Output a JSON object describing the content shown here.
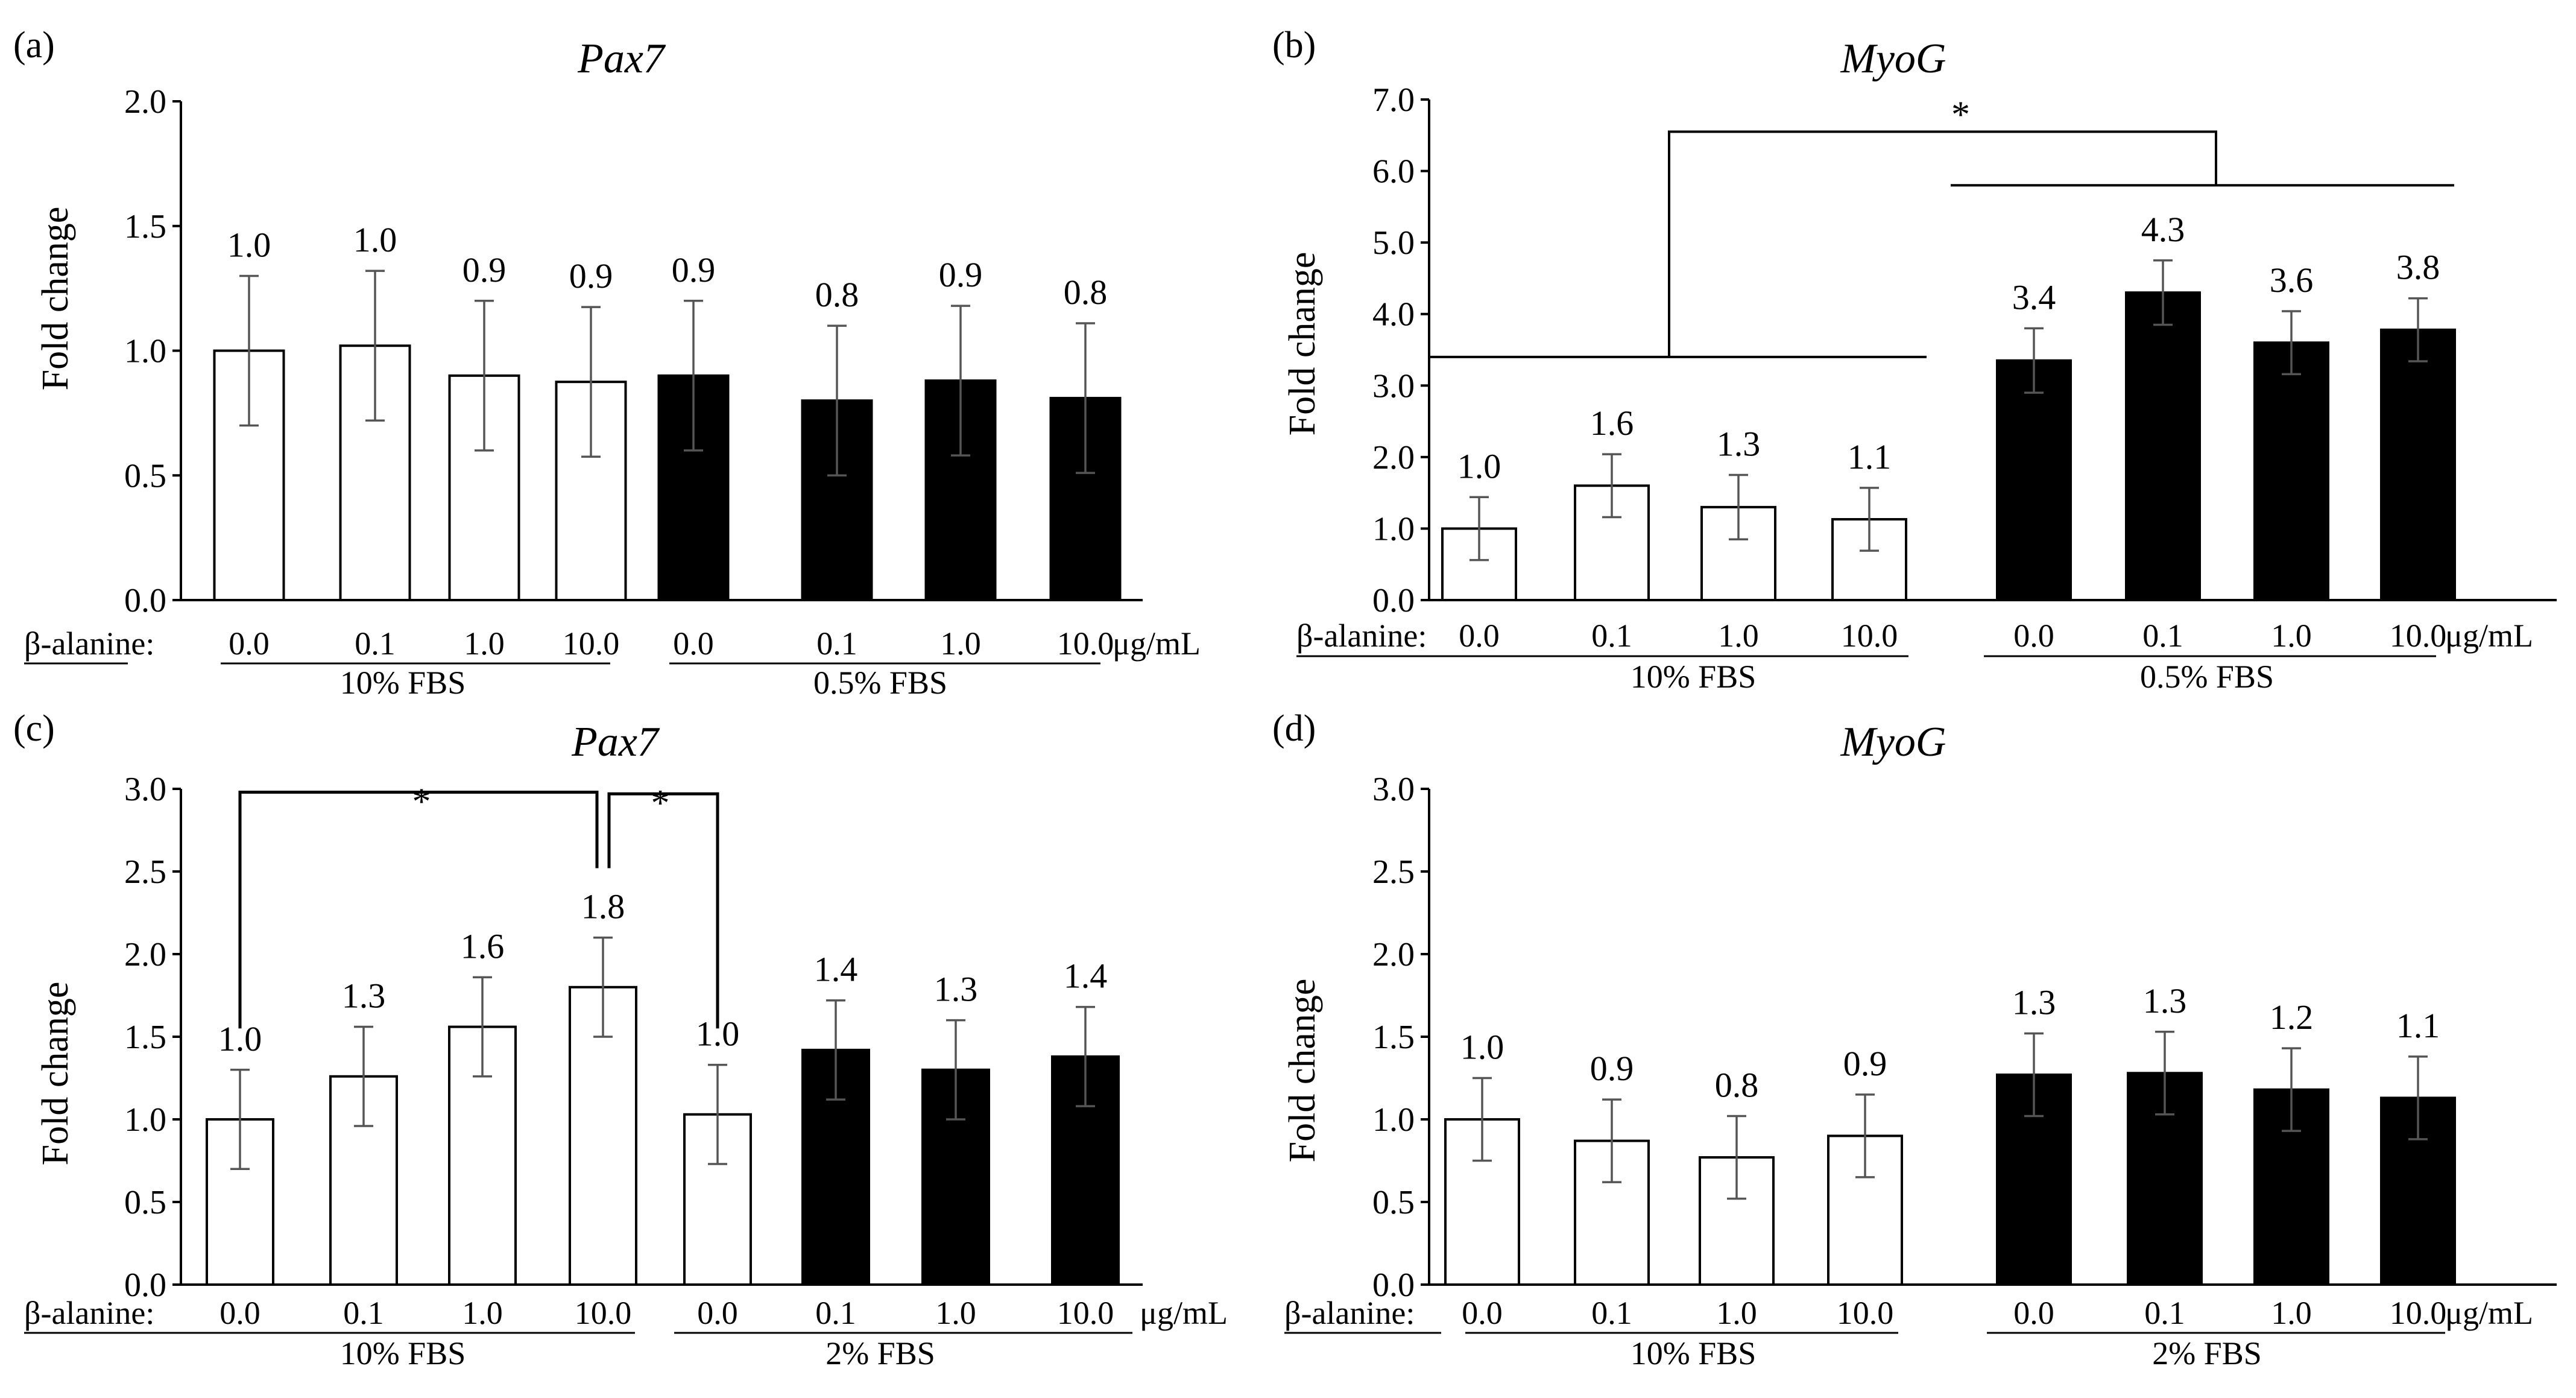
{
  "colors": {
    "open_bar_fill": "#ffffff",
    "filled_bar_fill": "#000000",
    "stroke": "#000000",
    "error_bar": "#555555"
  },
  "chart_data": [
    {
      "panel": "(a)",
      "title": "Pax7",
      "type": "bar",
      "ylabel": "Fold change",
      "ylim": [
        0,
        2.0
      ],
      "yticks": [
        "0.0",
        "0.5",
        "1.0",
        "1.5",
        "2.0"
      ],
      "categories": [
        "0.0",
        "0.1",
        "1.0",
        "10.0",
        "0.0",
        "0.1",
        "1.0",
        "10.0"
      ],
      "values": [
        1.0,
        1.02,
        0.9,
        0.875,
        0.9,
        0.8,
        0.88,
        0.81
      ],
      "errors": [
        0.3,
        0.3,
        0.3,
        0.3,
        0.3,
        0.3,
        0.3,
        0.3
      ],
      "value_labels": [
        "1.0",
        "1.0",
        "0.9",
        "0.9",
        "0.9",
        "0.8",
        "0.9",
        "0.8"
      ],
      "fills": [
        "open",
        "open",
        "open",
        "open",
        "filled",
        "filled",
        "filled",
        "filled"
      ],
      "x_prefix": "β-alanine:",
      "x_unit": "μg/mL",
      "groups": [
        {
          "label": "10% FBS",
          "bars": [
            0,
            3
          ]
        },
        {
          "label": "0.5% FBS",
          "bars": [
            4,
            7
          ]
        }
      ],
      "significance": []
    },
    {
      "panel": "(b)",
      "title": "MyoG",
      "type": "bar",
      "ylabel": "Fold change",
      "ylim": [
        0,
        7.0
      ],
      "yticks": [
        "0.0",
        "1.0",
        "2.0",
        "3.0",
        "4.0",
        "5.0",
        "6.0",
        "7.0"
      ],
      "categories": [
        "0.0",
        "0.1",
        "1.0",
        "10.0",
        "0.0",
        "0.1",
        "1.0",
        "10.0"
      ],
      "values": [
        1.0,
        1.6,
        1.3,
        1.13,
        3.35,
        4.3,
        3.6,
        3.78
      ],
      "errors": [
        0.44,
        0.44,
        0.45,
        0.44,
        0.45,
        0.45,
        0.44,
        0.44
      ],
      "value_labels": [
        "1.0",
        "1.6",
        "1.3",
        "1.1",
        "3.4",
        "4.3",
        "3.6",
        "3.8"
      ],
      "fills": [
        "open",
        "open",
        "open",
        "open",
        "filled",
        "filled",
        "filled",
        "filled"
      ],
      "x_prefix": "β-alanine:",
      "x_unit": "μg/mL",
      "groups": [
        {
          "label": "10% FBS",
          "bars": [
            0,
            3
          ]
        },
        {
          "label": "0.5% FBS",
          "bars": [
            4,
            7
          ]
        }
      ],
      "significance": [
        {
          "kind": "group",
          "label": "*",
          "from": [
            0,
            3
          ],
          "to": [
            4,
            7
          ],
          "left_y": 3.4,
          "right_y": 5.8,
          "top_y": 6.55
        }
      ]
    },
    {
      "panel": "(c)",
      "title": "Pax7",
      "type": "bar",
      "ylabel": "Fold change",
      "ylim": [
        0,
        3.0
      ],
      "yticks": [
        "0.0",
        "0.5",
        "1.0",
        "1.5",
        "2.0",
        "2.5",
        "3.0"
      ],
      "categories": [
        "0.0",
        "0.1",
        "1.0",
        "10.0",
        "0.0",
        "0.1",
        "1.0",
        "10.0"
      ],
      "values": [
        1.0,
        1.26,
        1.56,
        1.8,
        1.03,
        1.42,
        1.3,
        1.38
      ],
      "errors": [
        0.3,
        0.3,
        0.3,
        0.3,
        0.3,
        0.3,
        0.3,
        0.3
      ],
      "value_labels": [
        "1.0",
        "1.3",
        "1.6",
        "1.8",
        "1.0",
        "1.4",
        "1.3",
        "1.4"
      ],
      "fills": [
        "open",
        "open",
        "open",
        "open",
        "open",
        "filled",
        "filled",
        "filled"
      ],
      "x_prefix": "β-alanine:",
      "x_unit": "μg/mL",
      "groups": [
        {
          "label": "10% FBS",
          "bars": [
            0,
            3
          ]
        },
        {
          "label": "2% FBS",
          "bars": [
            4,
            7
          ]
        }
      ],
      "significance": [
        {
          "kind": "pair",
          "label": "*",
          "from": 0,
          "to": 3,
          "y": 2.98,
          "left_drop": 1.55,
          "right_drop": 2.52
        },
        {
          "kind": "pair",
          "label": "*",
          "from": 3,
          "to": 4,
          "y": 2.97,
          "left_drop": 2.52,
          "right_drop": 1.55
        }
      ]
    },
    {
      "panel": "(d)",
      "title": "MyoG",
      "type": "bar",
      "ylabel": "Fold change",
      "ylim": [
        0,
        3.0
      ],
      "yticks": [
        "0.0",
        "0.5",
        "1.0",
        "1.5",
        "2.0",
        "2.5",
        "3.0"
      ],
      "categories": [
        "0.0",
        "0.1",
        "1.0",
        "10.0",
        "0.0",
        "0.1",
        "1.0",
        "10.0"
      ],
      "values": [
        1.0,
        0.87,
        0.77,
        0.9,
        1.27,
        1.28,
        1.18,
        1.13
      ],
      "errors": [
        0.25,
        0.25,
        0.25,
        0.25,
        0.25,
        0.25,
        0.25,
        0.25
      ],
      "value_labels": [
        "1.0",
        "0.9",
        "0.8",
        "0.9",
        "1.3",
        "1.3",
        "1.2",
        "1.1"
      ],
      "fills": [
        "open",
        "open",
        "open",
        "open",
        "filled",
        "filled",
        "filled",
        "filled"
      ],
      "x_prefix": "β-alanine:",
      "x_unit": "μg/mL",
      "groups": [
        {
          "label": "10% FBS",
          "bars": [
            0,
            3
          ]
        },
        {
          "label": "2% FBS",
          "bars": [
            4,
            7
          ]
        }
      ],
      "significance": []
    }
  ]
}
